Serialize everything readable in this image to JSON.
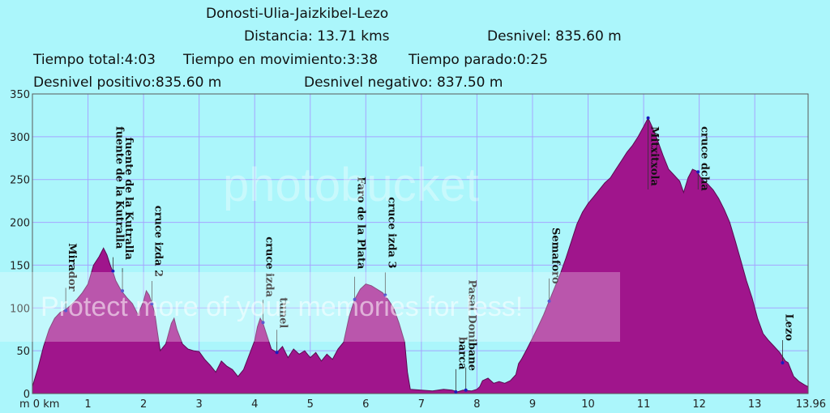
{
  "header": {
    "title": "Donosti-Ulia-Jaizkibel-Lezo",
    "distancia": "Distancia: 13.71 kms",
    "desnivel": "Desnivel: 835.60 m",
    "tiempo_total": "Tiempo total:4:03",
    "tiempo_movimiento": "Tiempo en movimiento:3:38",
    "tiempo_parado": "Tiempo parado:0:25",
    "desnivel_positivo": "Desnivel positivo:835.60 m",
    "desnivel_negativo": "Desnivel negativo: 837.50 m"
  },
  "watermark": {
    "brand": "photobucket",
    "banner": "Protect more of your memories for less!"
  },
  "chart_data": {
    "type": "area",
    "xlim": [
      0,
      13.96
    ],
    "ylim": [
      0,
      350
    ],
    "xticks": [
      0,
      1,
      2,
      3,
      4,
      5,
      6,
      7,
      8,
      9,
      10,
      11,
      12,
      13,
      13.96
    ],
    "xtick_labels": [
      "m 0 km",
      "1",
      "2",
      "3",
      "4",
      "5",
      "6",
      "7",
      "8",
      "9",
      "10",
      "11",
      "12",
      "13",
      "13.96"
    ],
    "yticks": [
      0,
      50,
      100,
      150,
      200,
      250,
      300,
      350
    ],
    "ytick_labels": [
      "0",
      "50",
      "100",
      "150",
      "200",
      "250",
      "300",
      "350"
    ],
    "grid": true,
    "colors": {
      "fill": "#a0158c",
      "line": "#5a0c52",
      "grid": "#a5a5ff",
      "plot_bg": "#abf6fb",
      "marker": "#1b1bbf"
    },
    "profile": [
      [
        0,
        8
      ],
      [
        0.1,
        30
      ],
      [
        0.2,
        55
      ],
      [
        0.3,
        75
      ],
      [
        0.4,
        88
      ],
      [
        0.5,
        95
      ],
      [
        0.6,
        98
      ],
      [
        0.7,
        104
      ],
      [
        0.8,
        110
      ],
      [
        0.9,
        118
      ],
      [
        1.0,
        128
      ],
      [
        1.1,
        150
      ],
      [
        1.2,
        160
      ],
      [
        1.28,
        170
      ],
      [
        1.34,
        162
      ],
      [
        1.4,
        150
      ],
      [
        1.45,
        142
      ],
      [
        1.5,
        132
      ],
      [
        1.6,
        120
      ],
      [
        1.7,
        112
      ],
      [
        1.8,
        105
      ],
      [
        1.9,
        92
      ],
      [
        2.0,
        108
      ],
      [
        2.05,
        120
      ],
      [
        2.1,
        115
      ],
      [
        2.15,
        105
      ],
      [
        2.2,
        95
      ],
      [
        2.25,
        72
      ],
      [
        2.3,
        50
      ],
      [
        2.4,
        58
      ],
      [
        2.5,
        82
      ],
      [
        2.55,
        88
      ],
      [
        2.6,
        75
      ],
      [
        2.7,
        58
      ],
      [
        2.8,
        52
      ],
      [
        2.9,
        50
      ],
      [
        3.0,
        49
      ],
      [
        3.1,
        40
      ],
      [
        3.2,
        33
      ],
      [
        3.3,
        25
      ],
      [
        3.4,
        38
      ],
      [
        3.5,
        32
      ],
      [
        3.6,
        28
      ],
      [
        3.7,
        20
      ],
      [
        3.8,
        28
      ],
      [
        3.9,
        45
      ],
      [
        4.0,
        62
      ],
      [
        4.05,
        78
      ],
      [
        4.1,
        88
      ],
      [
        4.15,
        82
      ],
      [
        4.2,
        72
      ],
      [
        4.3,
        52
      ],
      [
        4.4,
        48
      ],
      [
        4.5,
        55
      ],
      [
        4.6,
        42
      ],
      [
        4.7,
        52
      ],
      [
        4.8,
        46
      ],
      [
        4.9,
        50
      ],
      [
        5.0,
        42
      ],
      [
        5.1,
        48
      ],
      [
        5.2,
        38
      ],
      [
        5.3,
        46
      ],
      [
        5.4,
        40
      ],
      [
        5.5,
        52
      ],
      [
        5.6,
        60
      ],
      [
        5.7,
        90
      ],
      [
        5.8,
        110
      ],
      [
        5.9,
        122
      ],
      [
        6.0,
        128
      ],
      [
        6.1,
        126
      ],
      [
        6.2,
        122
      ],
      [
        6.3,
        118
      ],
      [
        6.4,
        110
      ],
      [
        6.5,
        100
      ],
      [
        6.6,
        82
      ],
      [
        6.7,
        60
      ],
      [
        6.75,
        25
      ],
      [
        6.8,
        5
      ],
      [
        7.0,
        4
      ],
      [
        7.2,
        3
      ],
      [
        7.4,
        5
      ],
      [
        7.55,
        4
      ],
      [
        7.65,
        2
      ],
      [
        7.75,
        4
      ],
      [
        7.9,
        3
      ],
      [
        8.0,
        5
      ],
      [
        8.05,
        8
      ],
      [
        8.1,
        15
      ],
      [
        8.2,
        18
      ],
      [
        8.3,
        12
      ],
      [
        8.4,
        14
      ],
      [
        8.5,
        12
      ],
      [
        8.6,
        15
      ],
      [
        8.7,
        22
      ],
      [
        8.75,
        35
      ],
      [
        8.8,
        40
      ],
      [
        8.9,
        52
      ],
      [
        9.0,
        65
      ],
      [
        9.1,
        78
      ],
      [
        9.2,
        92
      ],
      [
        9.3,
        108
      ],
      [
        9.4,
        124
      ],
      [
        9.5,
        140
      ],
      [
        9.6,
        158
      ],
      [
        9.7,
        178
      ],
      [
        9.8,
        198
      ],
      [
        9.9,
        212
      ],
      [
        10.0,
        222
      ],
      [
        10.1,
        230
      ],
      [
        10.2,
        238
      ],
      [
        10.3,
        246
      ],
      [
        10.4,
        252
      ],
      [
        10.5,
        262
      ],
      [
        10.6,
        272
      ],
      [
        10.7,
        282
      ],
      [
        10.8,
        290
      ],
      [
        10.9,
        300
      ],
      [
        11.0,
        312
      ],
      [
        11.08,
        322
      ],
      [
        11.15,
        312
      ],
      [
        11.25,
        296
      ],
      [
        11.35,
        278
      ],
      [
        11.45,
        262
      ],
      [
        11.55,
        255
      ],
      [
        11.65,
        248
      ],
      [
        11.72,
        235
      ],
      [
        11.8,
        252
      ],
      [
        11.88,
        262
      ],
      [
        11.95,
        260
      ],
      [
        12.05,
        250
      ],
      [
        12.15,
        245
      ],
      [
        12.25,
        238
      ],
      [
        12.35,
        228
      ],
      [
        12.45,
        215
      ],
      [
        12.55,
        200
      ],
      [
        12.65,
        178
      ],
      [
        12.75,
        155
      ],
      [
        12.85,
        132
      ],
      [
        12.95,
        112
      ],
      [
        13.05,
        88
      ],
      [
        13.15,
        70
      ],
      [
        13.25,
        62
      ],
      [
        13.35,
        55
      ],
      [
        13.45,
        48
      ],
      [
        13.55,
        38
      ],
      [
        13.6,
        36
      ],
      [
        13.7,
        20
      ],
      [
        13.8,
        14
      ],
      [
        13.9,
        10
      ],
      [
        13.96,
        8
      ]
    ],
    "annotations": [
      {
        "label": "Mirador",
        "x": 0.6,
        "y": 97
      },
      {
        "label": "fuente de la Kutralla",
        "x": 1.45,
        "y": 143
      },
      {
        "label": "fuente de la Kutralla",
        "x": 1.62,
        "y": 120
      },
      {
        "label": "cruce izda 2",
        "x": 2.15,
        "y": 105
      },
      {
        "label": "cruce izda",
        "x": 4.15,
        "y": 83
      },
      {
        "label": "tunel",
        "x": 4.4,
        "y": 48
      },
      {
        "label": "Faro de la Plata",
        "x": 5.8,
        "y": 110
      },
      {
        "label": "cruce izda 3",
        "x": 6.35,
        "y": 115
      },
      {
        "label": "barca",
        "x": 7.62,
        "y": 2
      },
      {
        "label": "Pasai Donibane",
        "x": 7.8,
        "y": 4
      },
      {
        "label": "Semaforo",
        "x": 9.3,
        "y": 108
      },
      {
        "label": "Mitxitxola",
        "x": 11.08,
        "y": 322
      },
      {
        "label": "cruce dcha",
        "x": 11.98,
        "y": 259
      },
      {
        "label": "Lezo",
        "x": 13.5,
        "y": 36
      }
    ]
  }
}
